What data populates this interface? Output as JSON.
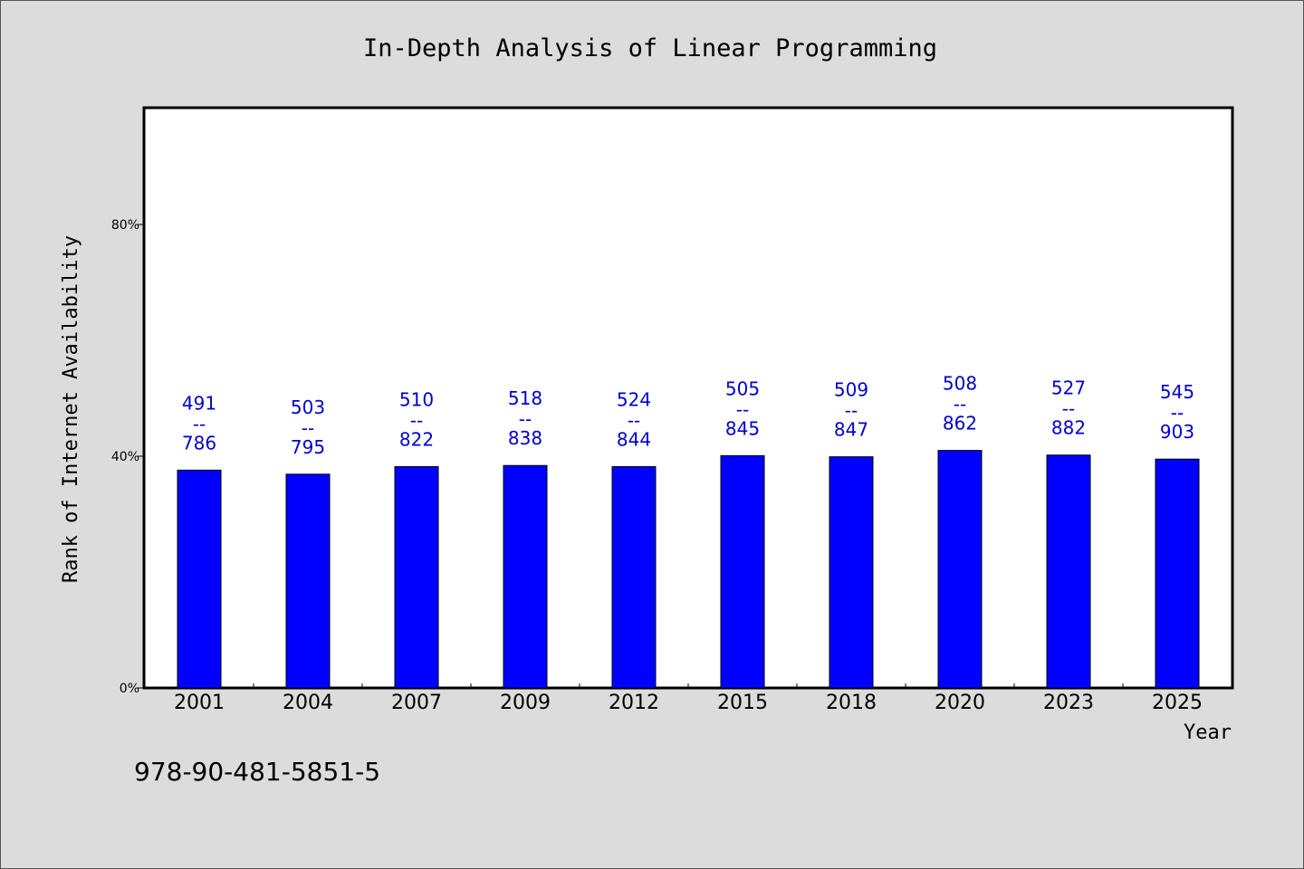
{
  "chart_data": {
    "type": "bar",
    "title": "In-Depth Analysis of Linear Programming",
    "xlabel": "Year",
    "ylabel": "Rank of Internet Availability",
    "categories": [
      "2001",
      "2004",
      "2007",
      "2009",
      "2012",
      "2015",
      "2018",
      "2020",
      "2023",
      "2025"
    ],
    "values": [
      37.6,
      36.9,
      38.2,
      38.4,
      38.2,
      40.1,
      39.9,
      41.0,
      40.2,
      39.5
    ],
    "label_top": [
      "491",
      "503",
      "510",
      "518",
      "524",
      "505",
      "509",
      "508",
      "527",
      "545"
    ],
    "label_sep": "--",
    "label_bottom": [
      "786",
      "795",
      "822",
      "838",
      "844",
      "845",
      "847",
      "862",
      "882",
      "903"
    ],
    "ylim": [
      0,
      100
    ],
    "yticks": [
      0,
      40,
      80
    ],
    "ytick_labels": [
      "0%",
      "40%",
      "80%"
    ],
    "bar_color": "#0000ff",
    "label_color": "#0000cc",
    "grid": false
  },
  "footnote": "978-90-481-5851-5"
}
